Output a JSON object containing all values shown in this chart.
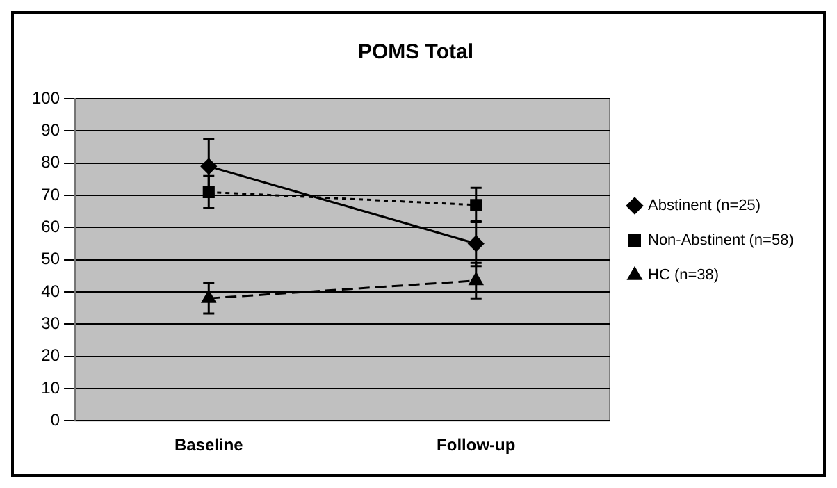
{
  "chart_data": {
    "type": "line",
    "title": "POMS Total",
    "categories": [
      "Baseline",
      "Follow-up"
    ],
    "series": [
      {
        "name": "Abstinent (n=25)",
        "color": "#000000",
        "values": [
          79,
          55
        ],
        "errors": [
          8.5,
          7
        ],
        "marker": "diamond",
        "line_style": "solid"
      },
      {
        "name": "Non-Abstinent (n=58)",
        "color": "#000000",
        "values": [
          71,
          67
        ],
        "errors": [
          5,
          5.3
        ],
        "marker": "square",
        "line_style": "dotted"
      },
      {
        "name": "HC (n=38)",
        "color": "#000000",
        "values": [
          38,
          43.5
        ],
        "errors": [
          4.7,
          5.5
        ],
        "marker": "triangle",
        "line_style": "dashed"
      }
    ],
    "ylim": [
      0,
      100
    ],
    "yticks": [
      0,
      10,
      20,
      30,
      40,
      50,
      60,
      70,
      80,
      90,
      100
    ],
    "grid": "y",
    "legend": "right"
  }
}
